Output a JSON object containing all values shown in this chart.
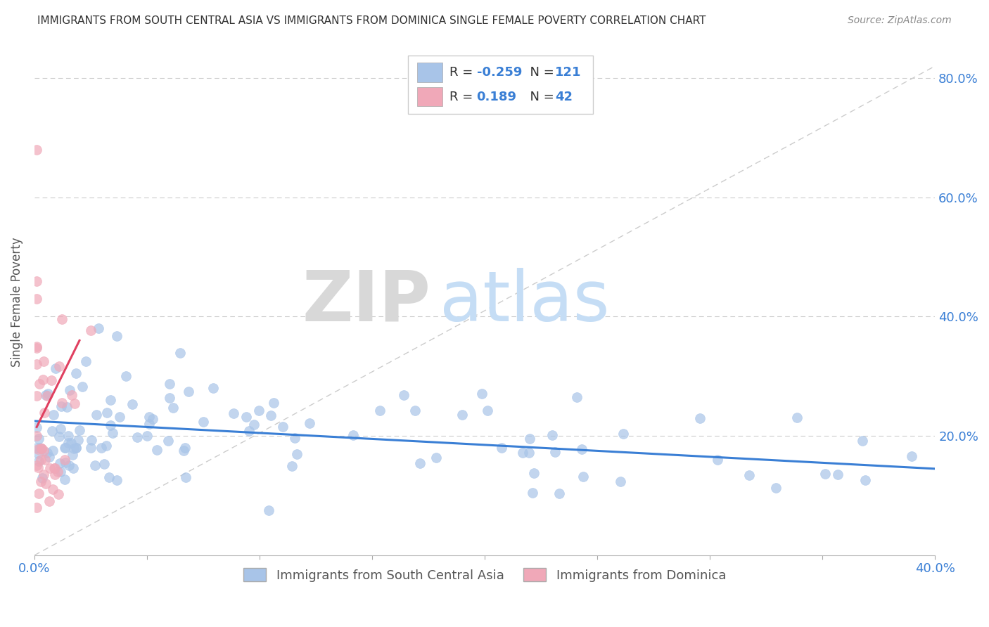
{
  "title": "IMMIGRANTS FROM SOUTH CENTRAL ASIA VS IMMIGRANTS FROM DOMINICA SINGLE FEMALE POVERTY CORRELATION CHART",
  "source": "Source: ZipAtlas.com",
  "ylabel": "Single Female Poverty",
  "xlim": [
    0.0,
    0.4
  ],
  "ylim": [
    0.0,
    0.85
  ],
  "blue_color": "#a8c4e8",
  "pink_color": "#f0a8b8",
  "blue_line_color": "#3a7fd5",
  "pink_line_color": "#e04060",
  "R_blue": -0.259,
  "N_blue": 121,
  "R_pink": 0.189,
  "N_pink": 42,
  "watermark_zip": "ZIP",
  "watermark_atlas": "atlas",
  "legend_label_blue": "Immigrants from South Central Asia",
  "legend_label_pink": "Immigrants from Dominica"
}
